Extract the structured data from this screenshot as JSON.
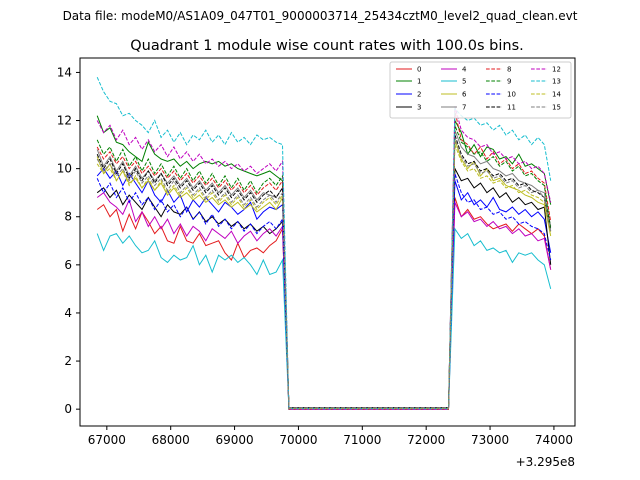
{
  "suptitle": "Data file: modeM0/AS1A09_047T01_9000003714_25434cztM0_level2_quad_clean.evt",
  "chart_data": {
    "type": "line",
    "title": "Quadrant 1 module wise count rates with 100.0s bins.",
    "xlabel": "",
    "ylabel": "",
    "x_offset_label": "+3.295e8",
    "xlim": [
      66580,
      74330
    ],
    "ylim": [
      -0.7,
      14.6
    ],
    "xticks": [
      67000,
      68000,
      69000,
      70000,
      71000,
      72000,
      73000,
      74000
    ],
    "xtick_labels": [
      "67000",
      "68000",
      "69000",
      "70000",
      "71000",
      "72000",
      "73000",
      "74000"
    ],
    "yticks": [
      0,
      2,
      4,
      6,
      8,
      10,
      12,
      14
    ],
    "ytick_labels": [
      "0",
      "2",
      "4",
      "6",
      "8",
      "10",
      "12",
      "14"
    ],
    "legend_location": "upper right",
    "x_segments": {
      "seg1": {
        "start": 66850,
        "step": 100,
        "count": 30
      },
      "gap": {
        "start": 69850,
        "step": 100,
        "count": 26
      },
      "seg2": {
        "start": 72450,
        "step": 100,
        "count": 16
      }
    },
    "series": [
      {
        "name": "0",
        "color": "#e31a1c",
        "dash": "solid",
        "seg1": [
          8.3,
          8.5,
          8.0,
          8.3,
          7.4,
          8.1,
          7.5,
          8.2,
          7.8,
          7.3,
          7.6,
          7.0,
          6.9,
          7.6,
          7.0,
          6.9,
          7.3,
          6.8,
          6.9,
          7.0,
          6.5,
          6.2,
          6.9,
          6.3,
          6.6,
          6.7,
          6.5,
          6.8,
          7.0,
          7.5
        ],
        "seg2": [
          8.8,
          8.0,
          8.3,
          7.9,
          8.0,
          7.7,
          7.5,
          7.6,
          7.7,
          7.4,
          7.7,
          7.5,
          7.3,
          7.5,
          7.2,
          5.8
        ]
      },
      {
        "name": "1",
        "color": "#008000",
        "dash": "solid",
        "seg1": [
          12.2,
          11.5,
          11.7,
          11.1,
          11.0,
          10.7,
          10.5,
          10.3,
          11.1,
          10.6,
          10.4,
          10.3,
          10.4,
          10.1,
          10.3,
          10.0,
          10.2,
          10.3,
          10.2,
          10.3,
          10.1,
          10.2,
          10.0,
          9.9,
          9.8,
          9.7,
          9.8,
          9.9,
          9.7,
          9.5
        ],
        "seg2": [
          12.0,
          11.5,
          10.6,
          11.0,
          10.5,
          10.9,
          10.8,
          10.4,
          10.5,
          10.2,
          10.6,
          10.1,
          10.2,
          10.0,
          9.8,
          8.5
        ]
      },
      {
        "name": "2",
        "color": "#0000ff",
        "dash": "solid",
        "seg1": [
          9.7,
          10.0,
          9.6,
          9.9,
          9.3,
          9.8,
          9.4,
          9.0,
          9.5,
          8.9,
          8.6,
          9.1,
          8.6,
          8.9,
          8.2,
          8.7,
          8.4,
          8.8,
          8.5,
          8.2,
          8.6,
          8.4,
          8.1,
          8.3,
          8.6,
          7.9,
          8.2,
          8.4,
          8.3,
          8.5
        ],
        "seg2": [
          9.5,
          8.7,
          9.0,
          8.5,
          8.7,
          8.4,
          8.8,
          8.3,
          8.2,
          8.4,
          8.1,
          8.3,
          8.0,
          8.2,
          7.9,
          6.5
        ]
      },
      {
        "name": "3",
        "color": "#000000",
        "dash": "solid",
        "seg1": [
          9.0,
          9.2,
          8.8,
          9.1,
          8.5,
          8.9,
          8.6,
          8.3,
          8.8,
          8.4,
          8.0,
          8.5,
          8.2,
          8.1,
          8.4,
          7.9,
          8.2,
          7.8,
          8.0,
          7.7,
          7.9,
          7.6,
          7.8,
          7.5,
          7.7,
          7.4,
          7.6,
          7.3,
          7.5,
          7.8
        ],
        "seg2": [
          10.0,
          9.5,
          9.6,
          9.2,
          9.4,
          9.0,
          9.2,
          8.8,
          9.0,
          8.6,
          8.8,
          8.5,
          8.6,
          8.3,
          8.4,
          6.0
        ]
      },
      {
        "name": "4",
        "color": "#bf00bf",
        "dash": "solid",
        "seg1": [
          8.8,
          9.0,
          8.6,
          8.4,
          8.1,
          8.7,
          7.8,
          8.2,
          7.6,
          8.0,
          7.5,
          7.9,
          7.3,
          7.7,
          7.2,
          7.6,
          7.4,
          7.0,
          7.5,
          7.3,
          7.1,
          7.4,
          6.9,
          7.2,
          7.4,
          7.0,
          7.3,
          7.5,
          7.2,
          7.6
        ],
        "seg2": [
          8.6,
          8.0,
          8.2,
          7.8,
          7.9,
          7.6,
          7.8,
          7.5,
          7.6,
          7.3,
          7.5,
          7.2,
          7.3,
          7.0,
          7.1,
          5.8
        ]
      },
      {
        "name": "5",
        "color": "#17becf",
        "dash": "solid",
        "seg1": [
          7.3,
          6.6,
          7.2,
          7.3,
          6.9,
          7.2,
          6.8,
          6.5,
          6.6,
          7.0,
          6.3,
          6.1,
          6.4,
          6.2,
          6.3,
          6.8,
          6.0,
          6.4,
          5.7,
          6.4,
          6.2,
          6.4,
          6.1,
          6.3,
          6.0,
          5.6,
          6.2,
          5.6,
          5.7,
          6.2
        ],
        "seg2": [
          7.5,
          7.1,
          7.3,
          6.8,
          7.0,
          6.6,
          6.7,
          6.5,
          6.6,
          6.1,
          6.5,
          6.4,
          6.5,
          6.2,
          6.0,
          5.0
        ]
      },
      {
        "name": "6",
        "color": "#bcbd22",
        "dash": "solid",
        "seg1": [
          10.5,
          9.8,
          10.2,
          9.5,
          9.9,
          9.4,
          9.6,
          9.2,
          9.5,
          9.1,
          9.4,
          8.9,
          9.2,
          8.8,
          9.0,
          8.7,
          8.9,
          8.6,
          8.8,
          8.5,
          8.7,
          8.4,
          8.6,
          8.3,
          8.5,
          8.2,
          8.4,
          8.6,
          8.3,
          8.8
        ],
        "seg2": [
          11.2,
          10.4,
          10.0,
          10.3,
          9.7,
          10.0,
          9.5,
          9.6,
          9.3,
          9.2,
          9.1,
          8.9,
          8.8,
          8.6,
          8.5,
          7.2
        ]
      },
      {
        "name": "7",
        "color": "#7f7f7f",
        "dash": "solid",
        "seg1": [
          10.8,
          10.1,
          10.5,
          9.9,
          10.3,
          9.7,
          10.1,
          9.6,
          9.9,
          9.5,
          9.8,
          9.4,
          9.7,
          9.3,
          9.6,
          9.2,
          9.5,
          9.1,
          9.4,
          9.0,
          9.3,
          8.9,
          9.2,
          8.8,
          9.1,
          8.7,
          9.0,
          8.9,
          8.8,
          9.2
        ],
        "seg2": [
          11.6,
          10.9,
          10.6,
          10.5,
          10.2,
          10.3,
          10.0,
          9.9,
          9.7,
          9.8,
          9.5,
          9.4,
          9.3,
          9.1,
          9.0,
          7.6
        ]
      },
      {
        "name": "8",
        "color": "#e31a1c",
        "dash": "dashed",
        "seg1": [
          10.9,
          10.4,
          10.7,
          10.2,
          10.5,
          10.0,
          10.3,
          9.8,
          10.1,
          9.7,
          10.0,
          9.6,
          9.9,
          9.5,
          9.8,
          9.4,
          9.7,
          9.3,
          9.6,
          9.2,
          9.5,
          9.1,
          9.4,
          9.0,
          9.3,
          8.9,
          9.2,
          9.4,
          9.1,
          9.5
        ],
        "seg2": [
          12.4,
          11.2,
          11.0,
          10.6,
          10.9,
          10.4,
          10.7,
          10.2,
          10.4,
          10.0,
          10.2,
          9.8,
          9.9,
          9.6,
          9.4,
          7.8
        ]
      },
      {
        "name": "9",
        "color": "#008000",
        "dash": "dashed",
        "seg1": [
          11.2,
          10.6,
          10.9,
          10.3,
          10.8,
          10.1,
          10.5,
          9.9,
          10.4,
          9.8,
          10.2,
          9.7,
          10.1,
          9.6,
          10.0,
          9.5,
          9.9,
          9.4,
          9.8,
          9.3,
          9.7,
          9.2,
          9.6,
          9.1,
          9.5,
          9.0,
          9.4,
          9.6,
          9.3,
          9.7
        ],
        "seg2": [
          11.8,
          11.1,
          10.9,
          10.6,
          10.7,
          10.3,
          10.5,
          10.1,
          10.3,
          9.9,
          10.1,
          9.7,
          9.8,
          9.5,
          9.3,
          7.5
        ]
      },
      {
        "name": "10",
        "color": "#0000ff",
        "dash": "dashed",
        "seg1": [
          9.6,
          9.0,
          9.4,
          8.8,
          9.2,
          8.6,
          9.0,
          8.5,
          8.8,
          8.3,
          8.7,
          8.2,
          8.5,
          8.0,
          8.4,
          7.9,
          8.2,
          7.7,
          8.1,
          7.6,
          7.9,
          7.5,
          7.8,
          7.4,
          7.7,
          7.3,
          7.6,
          7.8,
          7.5,
          7.9
        ],
        "seg2": [
          9.8,
          9.0,
          8.6,
          8.7,
          8.3,
          8.4,
          8.1,
          8.2,
          7.9,
          8.0,
          7.7,
          7.8,
          7.6,
          7.5,
          7.3,
          6.2
        ]
      },
      {
        "name": "11",
        "color": "#000000",
        "dash": "dashed",
        "seg1": [
          10.6,
          10.0,
          10.4,
          9.8,
          10.2,
          9.6,
          10.0,
          9.5,
          9.9,
          9.4,
          9.8,
          9.3,
          9.6,
          9.2,
          9.5,
          9.1,
          9.4,
          9.0,
          9.3,
          8.9,
          9.2,
          8.8,
          9.1,
          8.7,
          9.0,
          8.6,
          8.9,
          9.1,
          8.8,
          9.2
        ],
        "seg2": [
          11.4,
          10.6,
          10.2,
          10.3,
          9.9,
          10.0,
          9.7,
          9.8,
          9.5,
          9.6,
          9.3,
          9.4,
          9.1,
          9.0,
          8.8,
          7.4
        ]
      },
      {
        "name": "12",
        "color": "#bf00bf",
        "dash": "dashed",
        "seg1": [
          12.0,
          11.5,
          11.8,
          11.2,
          11.6,
          11.0,
          11.3,
          10.8,
          11.2,
          10.7,
          11.0,
          10.5,
          10.9,
          10.4,
          10.7,
          10.3,
          10.6,
          10.2,
          10.4,
          10.1,
          10.3,
          10.0,
          10.2,
          9.9,
          10.1,
          9.8,
          10.0,
          10.2,
          9.9,
          10.3
        ],
        "seg2": [
          12.6,
          11.6,
          11.3,
          11.2,
          10.9,
          11.0,
          10.6,
          10.7,
          10.4,
          10.5,
          10.2,
          10.3,
          10.0,
          10.1,
          9.8,
          8.6
        ]
      },
      {
        "name": "13",
        "color": "#17becf",
        "dash": "dashed",
        "seg1": [
          13.8,
          13.2,
          12.8,
          12.7,
          12.2,
          12.3,
          12.0,
          11.8,
          11.5,
          12.0,
          11.3,
          11.6,
          11.1,
          11.5,
          11.0,
          11.4,
          11.2,
          11.6,
          11.1,
          11.4,
          11.0,
          11.5,
          11.1,
          11.3,
          11.0,
          11.4,
          11.2,
          11.3,
          11.1,
          11.0
        ],
        "seg2": [
          12.5,
          12.2,
          12.0,
          12.1,
          11.8,
          11.9,
          11.6,
          11.8,
          11.4,
          11.6,
          11.2,
          11.4,
          11.0,
          11.3,
          11.0,
          9.5
        ]
      },
      {
        "name": "14",
        "color": "#bcbd22",
        "dash": "dashed",
        "seg1": [
          10.2,
          9.8,
          10.0,
          9.5,
          9.9,
          9.3,
          9.7,
          9.2,
          9.6,
          9.1,
          9.5,
          9.0,
          9.3,
          8.9,
          9.2,
          8.8,
          9.1,
          8.7,
          9.0,
          8.6,
          8.9,
          8.5,
          8.8,
          8.4,
          8.7,
          8.3,
          8.6,
          8.8,
          8.5,
          8.9
        ],
        "seg2": [
          11.0,
          10.3,
          9.9,
          10.0,
          9.6,
          9.7,
          9.4,
          9.5,
          9.2,
          9.3,
          9.0,
          9.1,
          8.9,
          8.8,
          8.6,
          7.3
        ]
      },
      {
        "name": "15",
        "color": "#7f7f7f",
        "dash": "dashed",
        "seg1": [
          10.4,
          9.9,
          10.2,
          9.7,
          10.0,
          9.5,
          9.9,
          9.4,
          9.7,
          9.3,
          9.6,
          9.1,
          9.5,
          9.0,
          9.3,
          8.9,
          9.2,
          8.8,
          9.1,
          8.7,
          9.0,
          8.6,
          8.9,
          8.5,
          8.8,
          8.4,
          8.7,
          8.9,
          8.6,
          9.0
        ],
        "seg2": [
          11.3,
          10.5,
          10.1,
          10.2,
          9.8,
          9.9,
          9.6,
          9.7,
          9.4,
          9.5,
          9.2,
          9.3,
          9.0,
          9.1,
          8.8,
          7.4
        ]
      }
    ]
  }
}
